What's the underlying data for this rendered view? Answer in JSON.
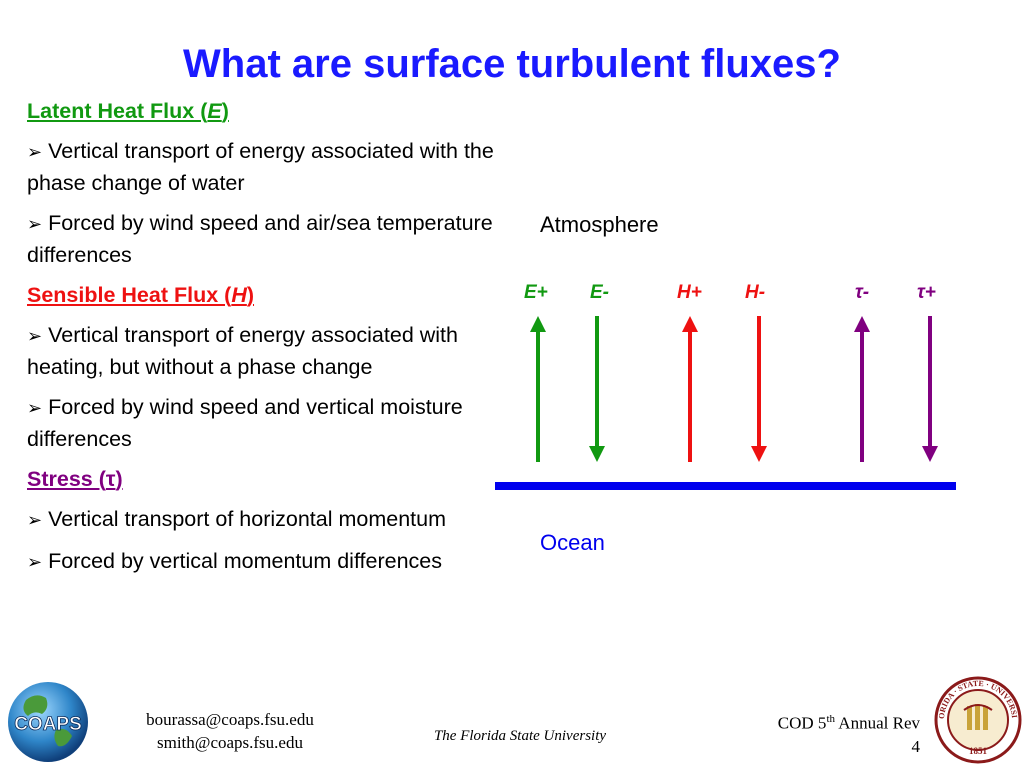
{
  "title": "What are surface turbulent fluxes?",
  "sections": {
    "latent": {
      "heading_prefix": "Latent Heat Flux (",
      "heading_symbol": "E",
      "heading_suffix": ")",
      "bullets": [
        "Vertical transport of energy associated with the phase change of water",
        "Forced by wind speed and air/sea temperature differences"
      ]
    },
    "sensible": {
      "heading_prefix": "Sensible Heat Flux (",
      "heading_symbol": "H",
      "heading_suffix": ")",
      "bullets": [
        "Vertical transport of energy associated with heating, but without a phase change",
        "Forced by wind speed and vertical moisture differences"
      ]
    },
    "stress": {
      "heading_prefix": "Stress (",
      "heading_symbol": "τ",
      "heading_suffix": ")",
      "bullets": [
        "Vertical transport of horizontal momentum",
        "Forced by vertical momentum differences"
      ]
    }
  },
  "bullet_glyph": "➢",
  "diagram": {
    "atmosphere_label": "Atmosphere",
    "ocean_label": "Ocean",
    "surface_color": "#0000ee",
    "fluxes": [
      {
        "label": "E+",
        "direction": "up",
        "color": "#119911"
      },
      {
        "label": "E-",
        "direction": "down",
        "color": "#119911"
      },
      {
        "label": "H+",
        "direction": "up",
        "color": "#ee1111"
      },
      {
        "label": "H-",
        "direction": "down",
        "color": "#ee1111"
      },
      {
        "label": "τ-",
        "direction": "up",
        "color": "#800080"
      },
      {
        "label": "τ+",
        "direction": "down",
        "color": "#800080"
      }
    ]
  },
  "footer": {
    "email_1": "bourassa@coaps.fsu.edu",
    "email_2": "smith@coaps.fsu.edu",
    "university": "The Florida State University",
    "rev_prefix": "COD 5",
    "rev_sup": "th",
    "rev_suffix": " Annual Rev",
    "page_number": "4",
    "coaps_logo_text": "COAPS",
    "seal_text_top": "FLORIDA · STATE · UNIVERSITY",
    "seal_year": "1851"
  }
}
